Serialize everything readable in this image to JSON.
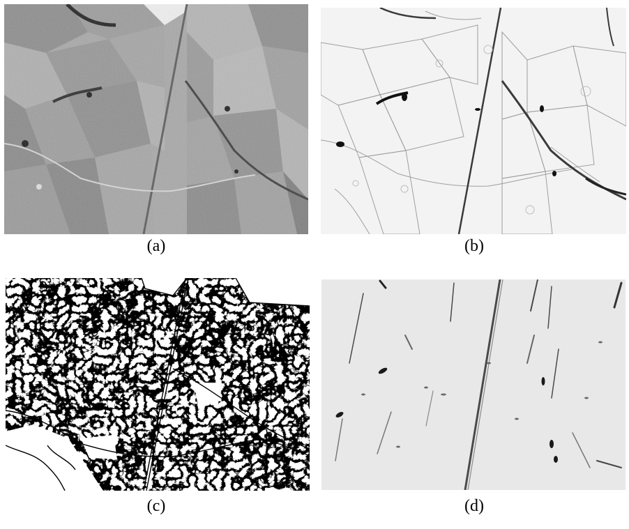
{
  "figure": {
    "panels": [
      {
        "id": "a",
        "caption": "(a)",
        "kind": "grayscale-aerial-photo"
      },
      {
        "id": "b",
        "caption": "(b)",
        "kind": "gradient-magnitude-map"
      },
      {
        "id": "c",
        "caption": "(c)",
        "kind": "binary-edge-map"
      },
      {
        "id": "d",
        "caption": "(d)",
        "kind": "line-response-map"
      }
    ]
  },
  "colors": {
    "background": "#ffffff",
    "photo_light": "#c8c8c8",
    "photo_dark": "#6a6a6a",
    "edge_dark": "#101010",
    "panel_d_bg": "#e8e8e8"
  }
}
